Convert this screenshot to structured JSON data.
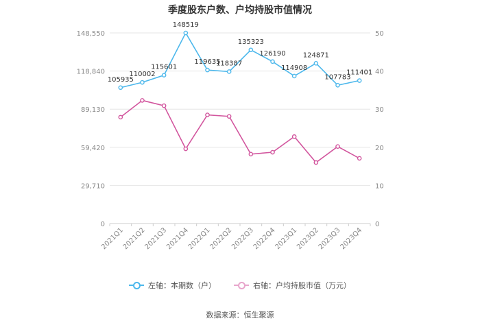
{
  "title": "季度股东户数、户均持股市值情况",
  "source": "数据来源：恒生聚源",
  "colors": {
    "left_series": "#4db8ec",
    "right_series": "#d2569e",
    "grid": "#e6e6e6",
    "axis_text": "#888888",
    "label_text": "#333333"
  },
  "chart_data": {
    "type": "line",
    "categories": [
      "2021Q1",
      "2021Q2",
      "2021Q3",
      "2021Q4",
      "2022Q1",
      "2022Q2",
      "2022Q3",
      "2022Q4",
      "2023Q1",
      "2023Q2",
      "2023Q3",
      "2023Q4"
    ],
    "left_axis": {
      "min": 0,
      "max": 148550,
      "ticks": [
        "0",
        "29,710",
        "59,420",
        "89,130",
        "118,840",
        "148,550"
      ]
    },
    "right_axis": {
      "min": 0,
      "max": 50,
      "ticks": [
        "0",
        "10",
        "20",
        "30",
        "40",
        "50"
      ]
    },
    "grid": true,
    "legend_position": "bottom",
    "series": [
      {
        "name": "左轴：本期数（户）",
        "axis": "left",
        "values": [
          105935,
          110002,
          115601,
          148519,
          119635,
          118387,
          135323,
          126190,
          114908,
          124871,
          107783,
          111401
        ],
        "labels": [
          "105935",
          "110002",
          "115601",
          "148519",
          "119635",
          "118387",
          "135323",
          "126190",
          "114908",
          "124871",
          "107783",
          "111401"
        ]
      },
      {
        "name": "右轴：户均持股市值（万元）",
        "axis": "right",
        "values": [
          27.9,
          32.3,
          30.9,
          19.6,
          28.5,
          28.1,
          18.2,
          18.7,
          22.8,
          16.0,
          20.2,
          17.1
        ]
      }
    ]
  }
}
